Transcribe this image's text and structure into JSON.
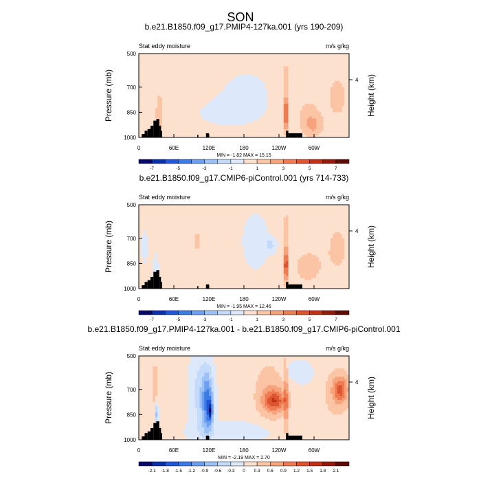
{
  "page_title": "SON",
  "colors": {
    "palette": [
      "#08086b",
      "#0a2fa8",
      "#1f55d6",
      "#3c7ae6",
      "#6d9ff0",
      "#9cc1f7",
      "#c4dafa",
      "#dde9fb",
      "#fde1cf",
      "#fac4a5",
      "#f6a27c",
      "#ef7b52",
      "#dc5530",
      "#c03015",
      "#931a0a",
      "#5e0a05"
    ],
    "land": "#000000"
  },
  "chart_data": [
    {
      "type": "heatmap",
      "title": "b.e21.B1850.f09_g17.PMIP4-127ka.001 (yrs 190-209)",
      "left_string": "Stat eddy moisture",
      "right_string": "m/s g/kg",
      "ylabel": "Pressure (mb)",
      "ylabel_right": "Height (km)",
      "yticks": [
        "500",
        "700",
        "850",
        "1000"
      ],
      "ytick_values": [
        500,
        700,
        850,
        1000
      ],
      "ylim": [
        500,
        1000
      ],
      "right_ticks": [
        "4"
      ],
      "xticks": [
        "0",
        "60E",
        "120E",
        "180",
        "120W",
        "60W"
      ],
      "xtick_values": [
        0,
        60,
        120,
        180,
        240,
        300
      ],
      "xlim": [
        0,
        360
      ],
      "stats": "MIN =  -1.82  MAX =  15.15",
      "colorbar_labels": [
        "-7",
        "-5",
        "-3",
        "-1",
        "1",
        "3",
        "5",
        "7"
      ],
      "colorbar_levels": [
        -7,
        -6,
        -5,
        -4,
        -3,
        -2,
        -1,
        0,
        1,
        2,
        3,
        4,
        5,
        6,
        7
      ],
      "background_level": 0.4,
      "blobs": [
        {
          "lon": 290,
          "p": 880,
          "rx": 20,
          "rp": 110,
          "v": 1.1
        },
        {
          "lon": 300,
          "p": 930,
          "rx": 15,
          "rp": 60,
          "v": 1.3
        },
        {
          "lon": 150,
          "p": 860,
          "rx": 85,
          "rp": 120,
          "v": -0.5
        },
        {
          "lon": 185,
          "p": 700,
          "rx": 55,
          "rp": 150,
          "v": -0.5
        },
        {
          "lon": 8,
          "p": 760,
          "rx": 8,
          "rp": 220,
          "v": 0.6
        },
        {
          "lon": 252,
          "p": 860,
          "rx": 3,
          "rp": 100,
          "v": 5.5
        },
        {
          "lon": 252,
          "p": 650,
          "rx": 2,
          "rp": 130,
          "v": 2.5
        },
        {
          "lon": 35,
          "p": 860,
          "rx": 6,
          "rp": 130,
          "v": 1.4
        },
        {
          "lon": 340,
          "p": 760,
          "rx": 20,
          "rp": 150,
          "v": 0.9
        }
      ]
    },
    {
      "type": "heatmap",
      "title": "b.e21.B1850.f09_g17.CMIP6-piControl.001 (yrs 714-733)",
      "left_string": "Stat eddy moisture",
      "right_string": "m/s g/kg",
      "ylabel": "Pressure (mb)",
      "ylabel_right": "Height (km)",
      "yticks": [
        "500",
        "700",
        "850",
        "1000"
      ],
      "ytick_values": [
        500,
        700,
        850,
        1000
      ],
      "ylim": [
        500,
        1000
      ],
      "right_ticks": [
        "4"
      ],
      "xticks": [
        "0",
        "60E",
        "120E",
        "180",
        "120W",
        "60W"
      ],
      "xtick_values": [
        0,
        60,
        120,
        180,
        240,
        300
      ],
      "xlim": [
        0,
        360
      ],
      "stats": "MIN =  -1.95  MAX =  12.46",
      "colorbar_labels": [
        "-7",
        "-5",
        "-3",
        "-1",
        "1",
        "3",
        "5",
        "7"
      ],
      "colorbar_levels": [
        -7,
        -6,
        -5,
        -4,
        -3,
        -2,
        -1,
        0,
        1,
        2,
        3,
        4,
        5,
        6,
        7
      ],
      "background_level": 0.4,
      "blobs": [
        {
          "lon": 200,
          "p": 720,
          "rx": 30,
          "rp": 220,
          "v": -0.7
        },
        {
          "lon": 225,
          "p": 740,
          "rx": 10,
          "rp": 40,
          "v": -1.5
        },
        {
          "lon": 10,
          "p": 750,
          "rx": 12,
          "rp": 200,
          "v": -0.5
        },
        {
          "lon": 290,
          "p": 870,
          "rx": 25,
          "rp": 100,
          "v": 1.1
        },
        {
          "lon": 252,
          "p": 860,
          "rx": 3,
          "rp": 100,
          "v": 5.5
        },
        {
          "lon": 252,
          "p": 650,
          "rx": 2,
          "rp": 130,
          "v": 2.5
        },
        {
          "lon": 100,
          "p": 720,
          "rx": 6,
          "rp": 60,
          "v": 1.2
        },
        {
          "lon": 30,
          "p": 880,
          "rx": 5,
          "rp": 100,
          "v": -0.8
        },
        {
          "lon": 340,
          "p": 760,
          "rx": 20,
          "rp": 150,
          "v": 0.9
        }
      ]
    },
    {
      "type": "heatmap",
      "title": "b.e21.B1850.f09_g17.PMIP4-127ka.001 - b.e21.B1850.f09_g17.CMIP6-piControl.001",
      "left_string": "Stat eddy moisture",
      "right_string": "m/s g/kg",
      "ylabel": "Pressure (mb)",
      "ylabel_right": "Height (km)",
      "yticks": [
        "500",
        "700",
        "850",
        "1000"
      ],
      "ytick_values": [
        500,
        700,
        850,
        1000
      ],
      "ylim": [
        500,
        1000
      ],
      "right_ticks": [
        "4"
      ],
      "xticks": [
        "0",
        "60E",
        "120E",
        "180",
        "120W",
        "60W"
      ],
      "xtick_values": [
        0,
        60,
        120,
        180,
        240,
        300
      ],
      "xlim": [
        0,
        360
      ],
      "stats": "MIN =  -2.19  MAX =  2.70",
      "colorbar_labels": [
        "-2.1",
        "-1.8",
        "-1.5",
        "-1.2",
        "-0.9",
        "-0.6",
        "-0.3",
        "0",
        "0.3",
        "0.6",
        "0.9",
        "1.2",
        "1.5",
        "1.8",
        "2.1"
      ],
      "colorbar_levels": [
        -2.1,
        -1.8,
        -1.5,
        -1.2,
        -0.9,
        -0.6,
        -0.3,
        0,
        0.3,
        0.6,
        0.9,
        1.2,
        1.5,
        1.8,
        2.1
      ],
      "background_level": 0.1,
      "blobs": [
        {
          "lon": 118,
          "p": 780,
          "rx": 10,
          "rp": 180,
          "v": -1.2
        },
        {
          "lon": 122,
          "p": 830,
          "rx": 4,
          "rp": 60,
          "v": -1.1
        },
        {
          "lon": 105,
          "p": 720,
          "rx": 18,
          "rp": 250,
          "v": -0.5
        },
        {
          "lon": 170,
          "p": 950,
          "rx": 80,
          "rp": 60,
          "v": -0.3
        },
        {
          "lon": 232,
          "p": 770,
          "rx": 18,
          "rp": 60,
          "v": 1.0
        },
        {
          "lon": 228,
          "p": 720,
          "rx": 30,
          "rp": 180,
          "v": 0.5
        },
        {
          "lon": 345,
          "p": 700,
          "rx": 12,
          "rp": 70,
          "v": 0.9
        },
        {
          "lon": 340,
          "p": 720,
          "rx": 25,
          "rp": 160,
          "v": 0.4
        },
        {
          "lon": 252,
          "p": 760,
          "rx": 2,
          "rp": 250,
          "v": 1.3
        },
        {
          "lon": 28,
          "p": 700,
          "rx": 3,
          "rp": 200,
          "v": 0.5
        },
        {
          "lon": 30,
          "p": 850,
          "rx": 3,
          "rp": 80,
          "v": -0.9
        },
        {
          "lon": 270,
          "p": 600,
          "rx": 30,
          "rp": 80,
          "v": -0.3
        }
      ]
    }
  ]
}
